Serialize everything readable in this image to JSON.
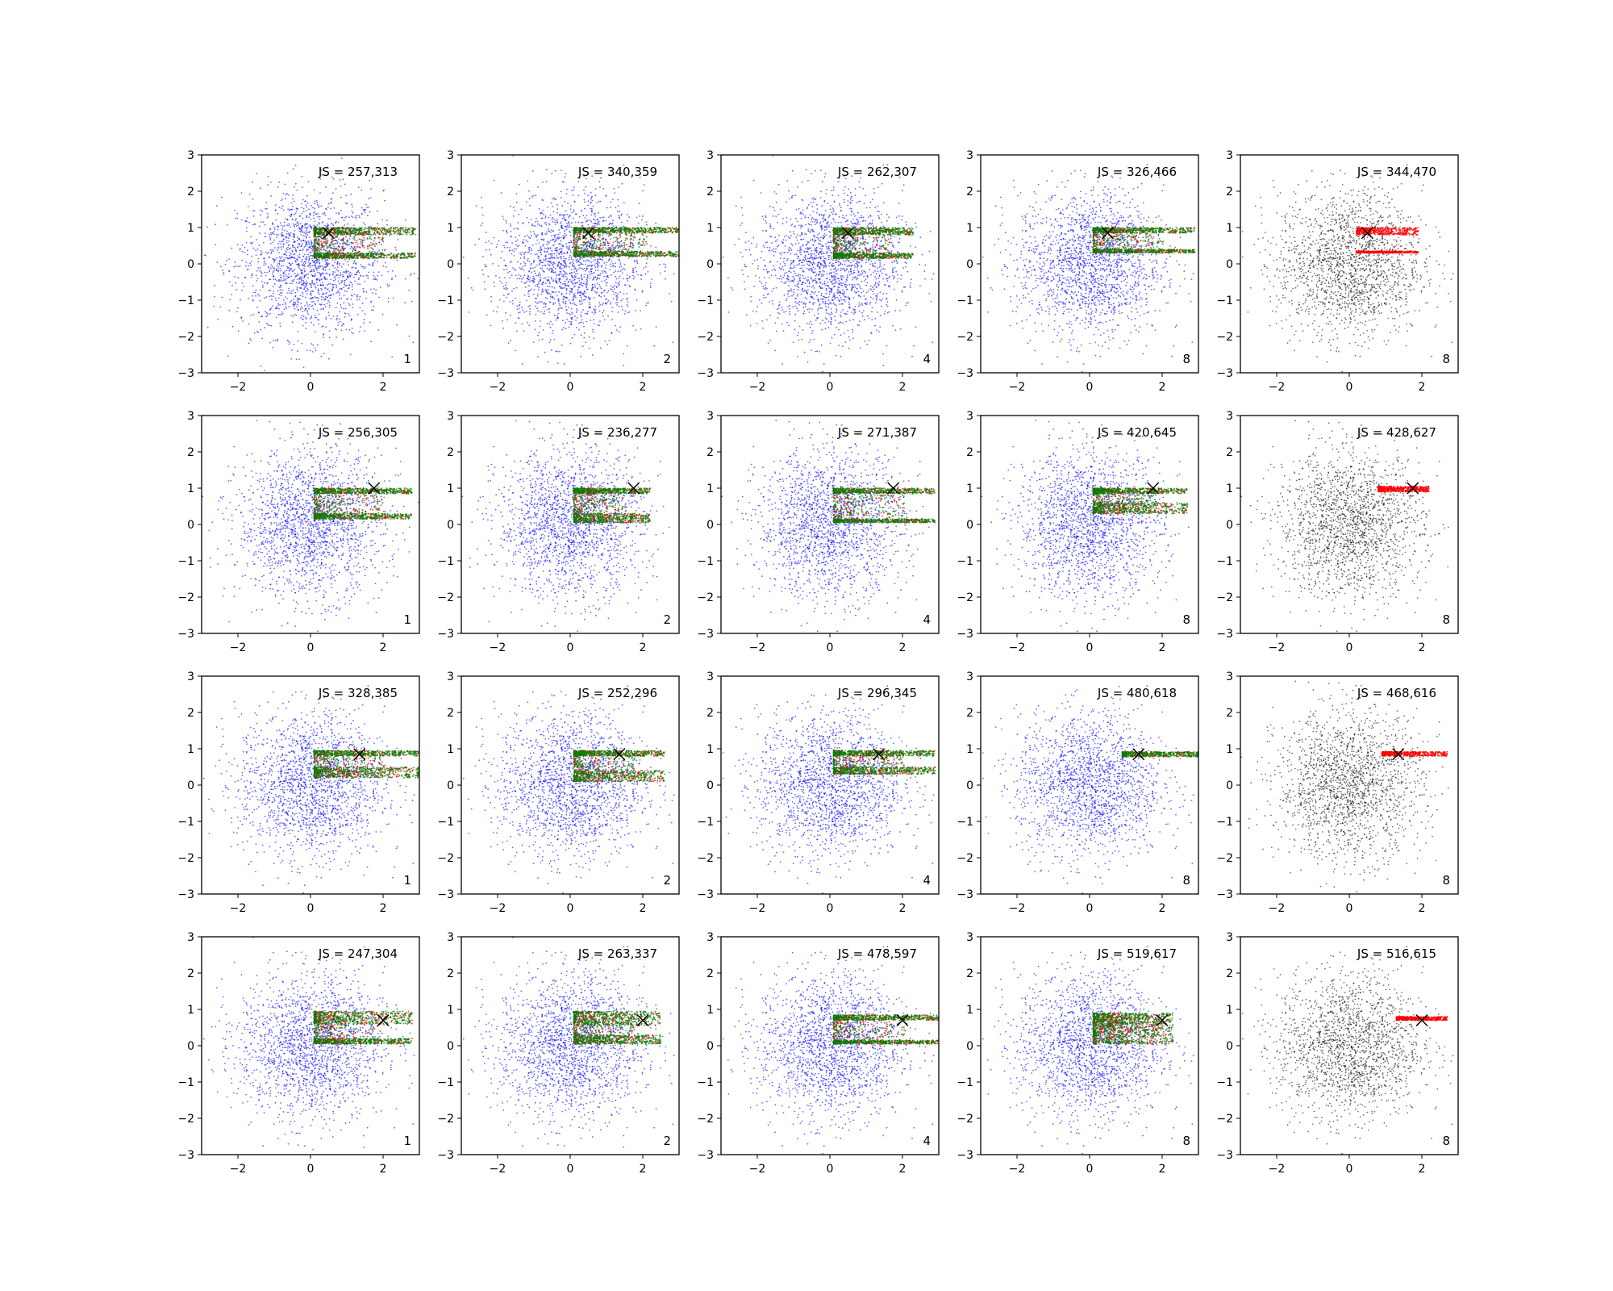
{
  "chart_data": {
    "type": "scatter",
    "layout": {
      "rows": 4,
      "cols": 5
    },
    "xlim": [
      -3,
      3
    ],
    "ylim": [
      -3,
      3
    ],
    "xticks": [
      -2,
      0,
      2
    ],
    "yticks": [
      -3,
      -2,
      -1,
      0,
      1,
      2,
      3
    ],
    "grid": false,
    "colors": {
      "background_points_model": "#0000ff",
      "background_points_reference": "#000000",
      "points_red": "#ff0000",
      "points_green": "#008000",
      "marker": "#000000"
    },
    "panels": [
      {
        "row": 0,
        "col": 0,
        "js_label": "JS = 257,313",
        "corner_label": "1",
        "marker": [
          0.5,
          0.85
        ],
        "background": "blue",
        "bands": [
          [
            0.8,
            1.0
          ],
          [
            0.15,
            0.3
          ]
        ],
        "x_start": 0.1,
        "x_end": 2.9,
        "has_green": true
      },
      {
        "row": 0,
        "col": 1,
        "js_label": "JS = 340,359",
        "corner_label": "2",
        "marker": [
          0.5,
          0.85
        ],
        "background": "blue",
        "bands": [
          [
            0.85,
            1.0
          ],
          [
            0.2,
            0.35
          ]
        ],
        "x_start": 0.1,
        "x_end": 3.0,
        "has_green": true
      },
      {
        "row": 0,
        "col": 2,
        "js_label": "JS = 262,307",
        "corner_label": "4",
        "marker": [
          0.5,
          0.85
        ],
        "background": "blue",
        "bands": [
          [
            0.8,
            1.0
          ],
          [
            0.15,
            0.3
          ]
        ],
        "x_start": 0.1,
        "x_end": 2.3,
        "has_green": true
      },
      {
        "row": 0,
        "col": 3,
        "js_label": "JS = 326,466",
        "corner_label": "8",
        "marker": [
          0.5,
          0.85
        ],
        "background": "blue",
        "bands": [
          [
            0.85,
            1.0
          ],
          [
            0.3,
            0.4
          ]
        ],
        "x_start": 0.1,
        "x_end": 2.9,
        "has_green": true
      },
      {
        "row": 0,
        "col": 4,
        "js_label": "JS = 344,470",
        "corner_label": "8",
        "marker": [
          0.5,
          0.85
        ],
        "background": "black",
        "bands": [
          [
            0.8,
            1.0
          ],
          [
            0.3,
            0.35
          ]
        ],
        "x_start": 0.2,
        "x_end": 1.9,
        "has_green": false
      },
      {
        "row": 1,
        "col": 0,
        "js_label": "JS = 256,305",
        "corner_label": "1",
        "marker": [
          1.75,
          1.0
        ],
        "background": "blue",
        "bands": [
          [
            0.85,
            1.0
          ],
          [
            0.15,
            0.3
          ]
        ],
        "x_start": 0.1,
        "x_end": 2.8,
        "has_green": true
      },
      {
        "row": 1,
        "col": 1,
        "js_label": "JS = 236,277",
        "corner_label": "2",
        "marker": [
          1.75,
          1.0
        ],
        "background": "blue",
        "bands": [
          [
            0.85,
            1.0
          ],
          [
            0.05,
            0.3
          ]
        ],
        "x_start": 0.1,
        "x_end": 2.2,
        "has_green": true
      },
      {
        "row": 1,
        "col": 2,
        "js_label": "JS = 271,387",
        "corner_label": "4",
        "marker": [
          1.75,
          1.0
        ],
        "background": "blue",
        "bands": [
          [
            0.85,
            1.0
          ],
          [
            0.05,
            0.15
          ]
        ],
        "x_start": 0.1,
        "x_end": 2.9,
        "has_green": true
      },
      {
        "row": 1,
        "col": 3,
        "js_label": "JS = 420,645",
        "corner_label": "8",
        "marker": [
          1.75,
          1.0
        ],
        "background": "blue",
        "bands": [
          [
            0.85,
            1.0
          ],
          [
            0.3,
            0.6
          ]
        ],
        "x_start": 0.1,
        "x_end": 2.7,
        "has_green": true
      },
      {
        "row": 1,
        "col": 4,
        "js_label": "JS = 428,627",
        "corner_label": "8",
        "marker": [
          1.75,
          1.0
        ],
        "background": "black",
        "bands": [
          [
            0.9,
            1.05
          ]
        ],
        "x_start": 0.8,
        "x_end": 2.2,
        "has_green": false
      },
      {
        "row": 2,
        "col": 0,
        "js_label": "JS = 328,385",
        "corner_label": "1",
        "marker": [
          1.35,
          0.85
        ],
        "background": "blue",
        "bands": [
          [
            0.8,
            0.95
          ],
          [
            0.2,
            0.5
          ]
        ],
        "x_start": 0.1,
        "x_end": 3.0,
        "has_green": true
      },
      {
        "row": 2,
        "col": 1,
        "js_label": "JS = 252,296",
        "corner_label": "2",
        "marker": [
          1.35,
          0.85
        ],
        "background": "blue",
        "bands": [
          [
            0.8,
            0.95
          ],
          [
            0.1,
            0.4
          ]
        ],
        "x_start": 0.1,
        "x_end": 2.6,
        "has_green": true
      },
      {
        "row": 2,
        "col": 2,
        "js_label": "JS = 296,345",
        "corner_label": "4",
        "marker": [
          1.35,
          0.85
        ],
        "background": "blue",
        "bands": [
          [
            0.8,
            0.95
          ],
          [
            0.3,
            0.5
          ]
        ],
        "x_start": 0.1,
        "x_end": 2.9,
        "has_green": true
      },
      {
        "row": 2,
        "col": 3,
        "js_label": "JS = 480,618",
        "corner_label": "8",
        "marker": [
          1.35,
          0.85
        ],
        "background": "blue",
        "bands": [
          [
            0.78,
            0.92
          ]
        ],
        "x_start": 0.9,
        "x_end": 3.0,
        "has_green": true
      },
      {
        "row": 2,
        "col": 4,
        "js_label": "JS = 468,616",
        "corner_label": "8",
        "marker": [
          1.35,
          0.85
        ],
        "background": "black",
        "bands": [
          [
            0.8,
            0.92
          ]
        ],
        "x_start": 0.9,
        "x_end": 2.7,
        "has_green": false
      },
      {
        "row": 3,
        "col": 0,
        "js_label": "JS = 247,304",
        "corner_label": "1",
        "marker": [
          2.0,
          0.7
        ],
        "background": "blue",
        "bands": [
          [
            0.6,
            0.95
          ],
          [
            0.05,
            0.2
          ]
        ],
        "x_start": 0.1,
        "x_end": 2.8,
        "has_green": true
      },
      {
        "row": 3,
        "col": 1,
        "js_label": "JS = 263,337",
        "corner_label": "2",
        "marker": [
          2.0,
          0.7
        ],
        "background": "blue",
        "bands": [
          [
            0.55,
            0.95
          ],
          [
            0.05,
            0.3
          ]
        ],
        "x_start": 0.1,
        "x_end": 2.5,
        "has_green": true
      },
      {
        "row": 3,
        "col": 2,
        "js_label": "JS = 478,597",
        "corner_label": "4",
        "marker": [
          2.0,
          0.7
        ],
        "background": "blue",
        "bands": [
          [
            0.7,
            0.85
          ],
          [
            0.05,
            0.15
          ]
        ],
        "x_start": 0.1,
        "x_end": 3.0,
        "has_green": true
      },
      {
        "row": 3,
        "col": 3,
        "js_label": "JS = 519,617",
        "corner_label": "8",
        "marker": [
          2.0,
          0.7
        ],
        "background": "blue",
        "bands": [
          [
            0.6,
            0.9
          ],
          [
            0.05,
            0.6
          ]
        ],
        "x_start": 0.1,
        "x_end": 2.3,
        "has_green": true
      },
      {
        "row": 3,
        "col": 4,
        "js_label": "JS = 516,615",
        "corner_label": "8",
        "marker": [
          2.0,
          0.7
        ],
        "background": "black",
        "bands": [
          [
            0.7,
            0.8
          ]
        ],
        "x_start": 1.3,
        "x_end": 2.7,
        "has_green": false
      }
    ]
  }
}
